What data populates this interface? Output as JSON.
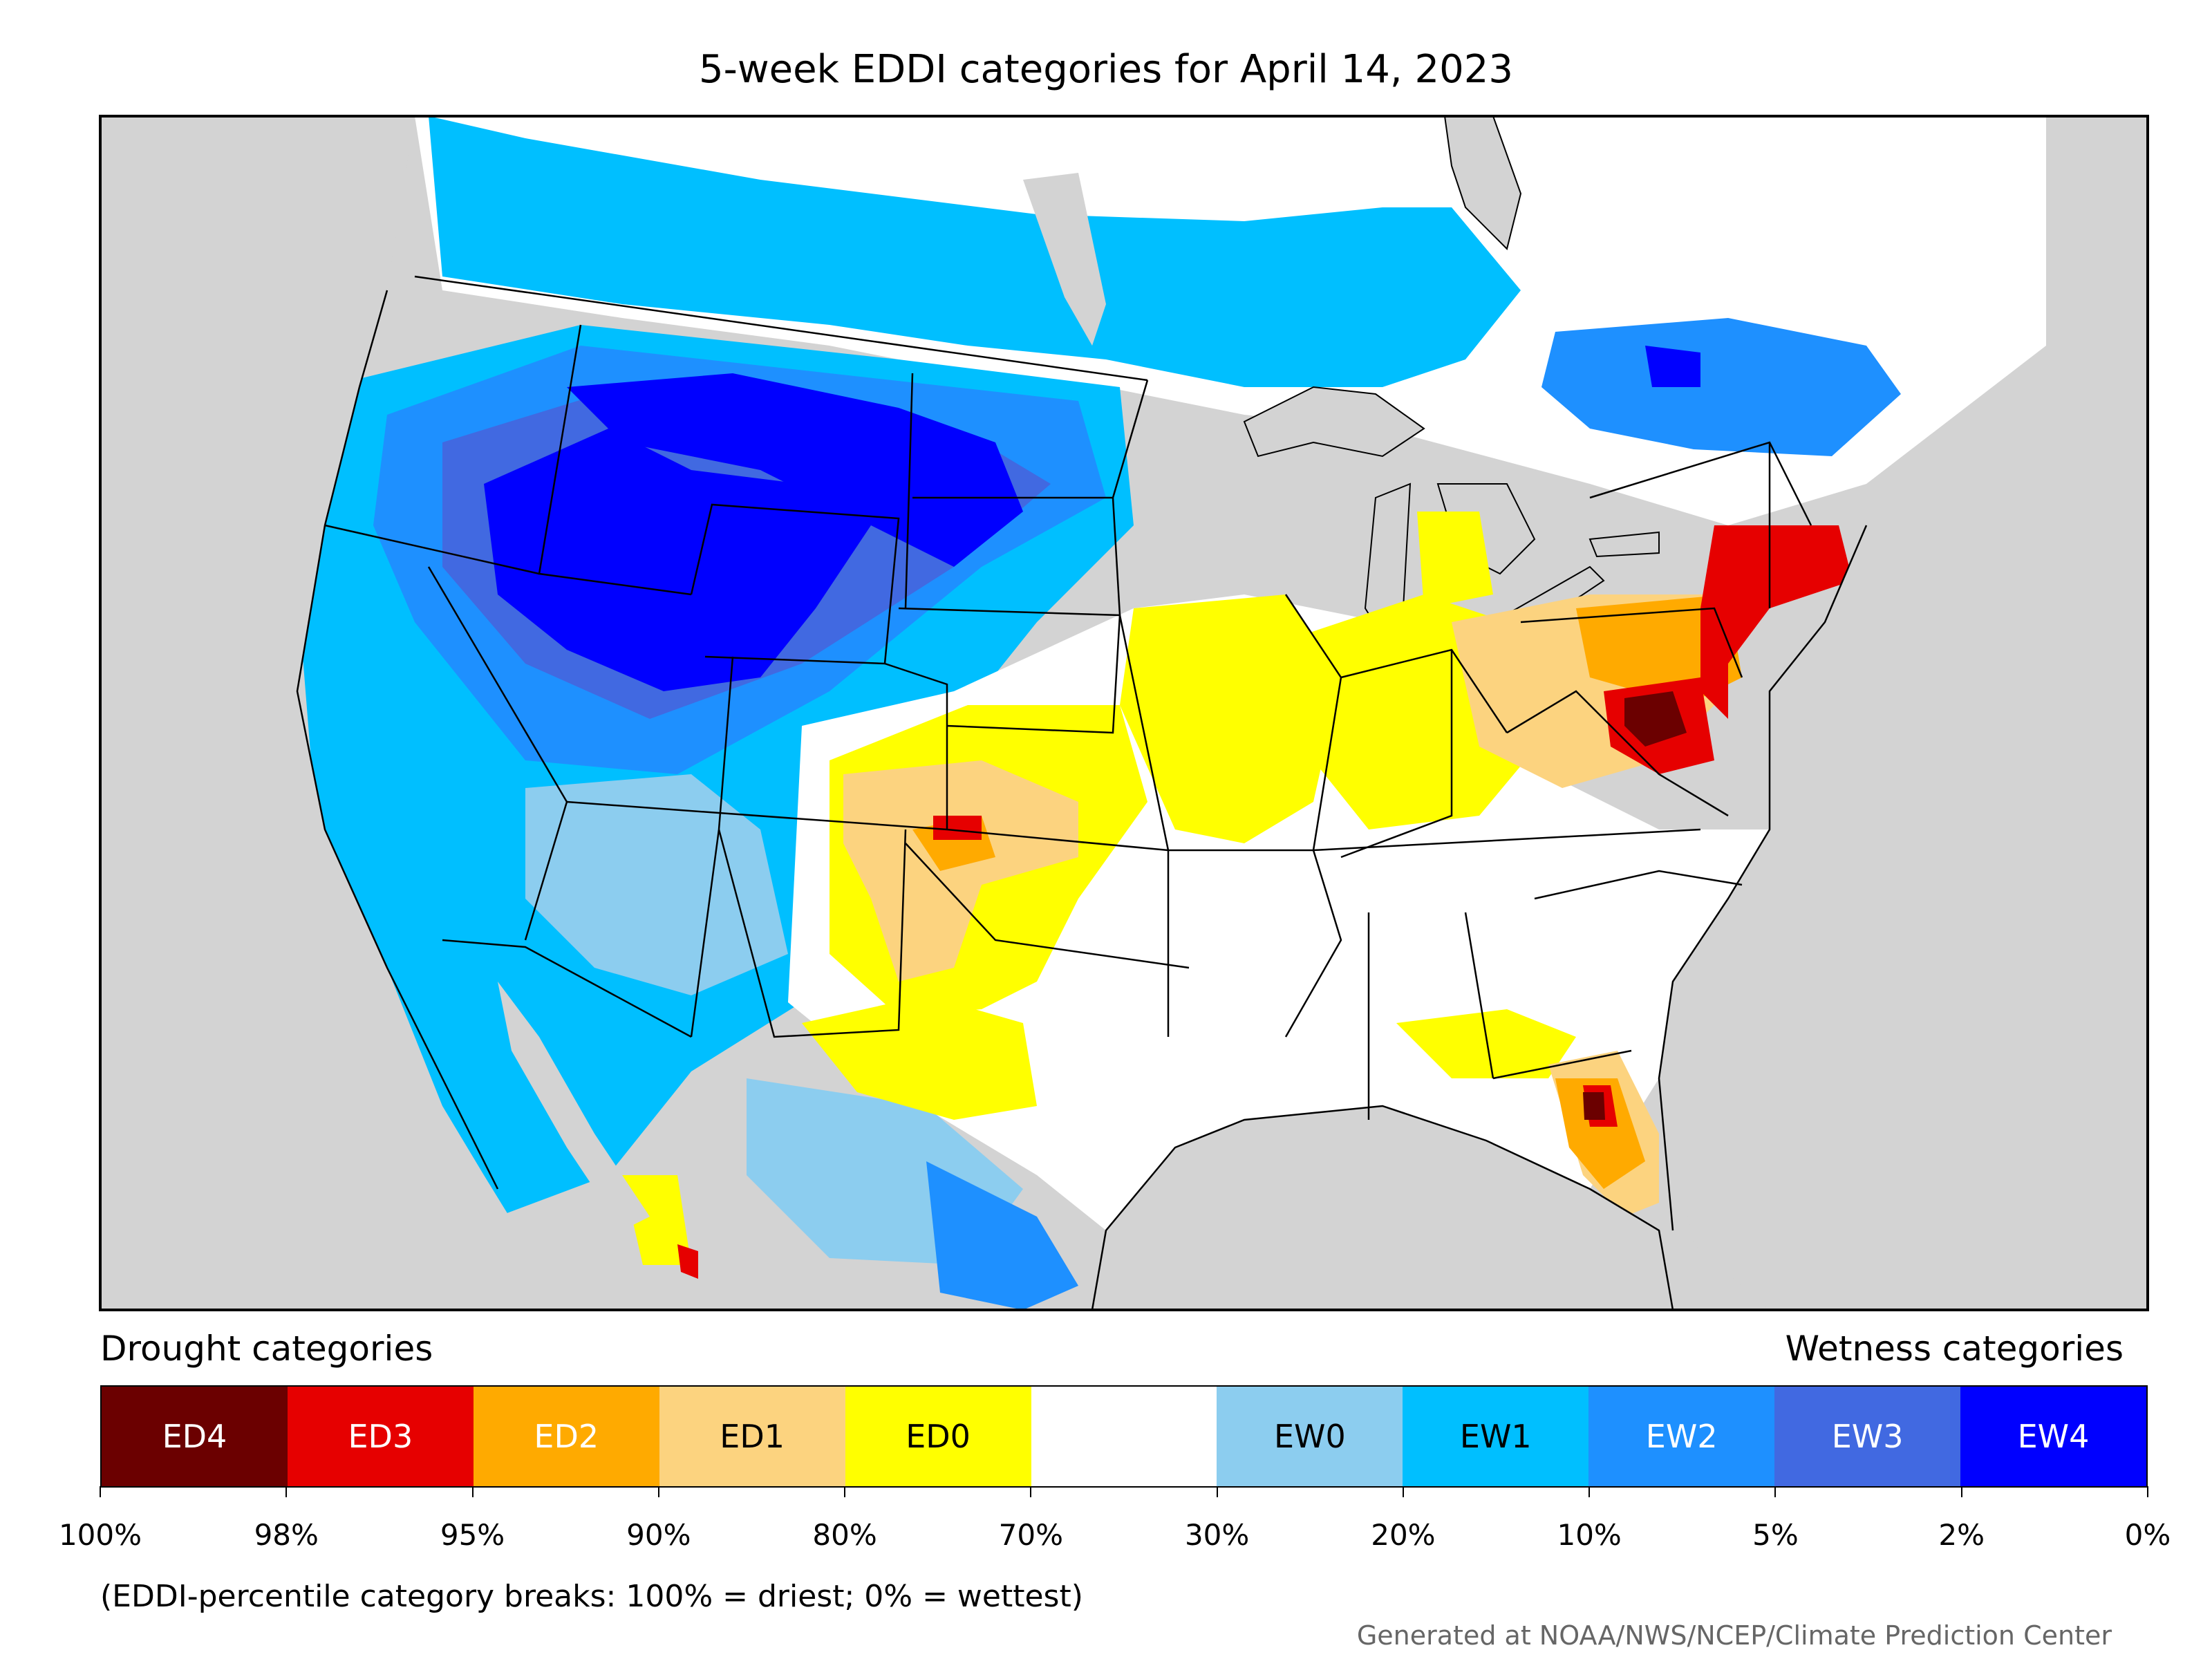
{
  "title": "5-week EDDI categories for April 14, 2023",
  "legend": {
    "drought_heading": "Drought categories",
    "wetness_heading": "Wetness categories",
    "categories": [
      {
        "label": "ED4",
        "color": "#6b0000",
        "text_color": "#ffffff"
      },
      {
        "label": "ED3",
        "color": "#e60000",
        "text_color": "#ffffff"
      },
      {
        "label": "ED2",
        "color": "#ffaa00",
        "text_color": "#ffffff"
      },
      {
        "label": "ED1",
        "color": "#fcd37f",
        "text_color": "#000000"
      },
      {
        "label": "ED0",
        "color": "#ffff00",
        "text_color": "#000000"
      },
      {
        "label": "",
        "color": "#ffffff",
        "text_color": "#000000"
      },
      {
        "label": "EW0",
        "color": "#8ccdef",
        "text_color": "#000000"
      },
      {
        "label": "EW1",
        "color": "#00bfff",
        "text_color": "#000000"
      },
      {
        "label": "EW2",
        "color": "#1e90ff",
        "text_color": "#ffffff"
      },
      {
        "label": "EW3",
        "color": "#4169e1",
        "text_color": "#ffffff"
      },
      {
        "label": "EW4",
        "color": "#0000ff",
        "text_color": "#ffffff"
      }
    ],
    "ticks": [
      "100%",
      "98%",
      "95%",
      "90%",
      "80%",
      "70%",
      "30%",
      "20%",
      "10%",
      "5%",
      "2%",
      "0%"
    ]
  },
  "note": "(EDDI-percentile category breaks: 100% = driest; 0% = wettest)",
  "credit": "Generated at NOAA/NWS/NCEP/Climate Prediction Center",
  "map_colors": {
    "land_gray": "#d3d3d3",
    "no_data": "#ffffff"
  }
}
